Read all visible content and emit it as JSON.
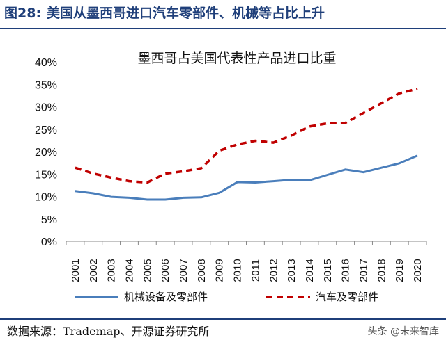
{
  "figure": {
    "number": "图28:",
    "caption": "美国从墨西哥进口汽车零部件、机械等占比上升",
    "source": "数据来源：Trademap、开源证券研究所",
    "watermark": "头条 @未来智库"
  },
  "colors": {
    "title": "#1f3f7a",
    "series_machinery": "#4a7ebb",
    "series_auto": "#c00000",
    "axis": "#888888"
  },
  "chart_data": {
    "type": "line",
    "title": "墨西哥占美国代表性产品进口比重",
    "x": [
      "2001",
      "2002",
      "2003",
      "2004",
      "2005",
      "2006",
      "2007",
      "2008",
      "2009",
      "2010",
      "2011",
      "2012",
      "2013",
      "2014",
      "2015",
      "2016",
      "2017",
      "2018",
      "2019",
      "2020"
    ],
    "ylim": [
      0,
      40
    ],
    "yticks": [
      "0%",
      "5%",
      "10%",
      "15%",
      "20%",
      "25%",
      "30%",
      "35%",
      "40%"
    ],
    "grid": false,
    "legend": "bottom",
    "series": [
      {
        "name": "机械设备及零部件",
        "style": "solid",
        "color": "#4a7ebb",
        "values": [
          11.2,
          10.7,
          9.9,
          9.7,
          9.3,
          9.3,
          9.7,
          9.8,
          10.8,
          13.2,
          13.1,
          13.4,
          13.7,
          13.6,
          14.8,
          16.0,
          15.4,
          16.4,
          17.4,
          19.1
        ]
      },
      {
        "name": "汽车及零部件",
        "style": "dashed",
        "color": "#c00000",
        "values": [
          16.4,
          15.1,
          14.2,
          13.4,
          13.1,
          15.1,
          15.6,
          16.3,
          20.2,
          21.6,
          22.4,
          22.0,
          23.6,
          25.6,
          26.3,
          26.4,
          28.6,
          30.8,
          33.0,
          34.0
        ]
      }
    ]
  }
}
